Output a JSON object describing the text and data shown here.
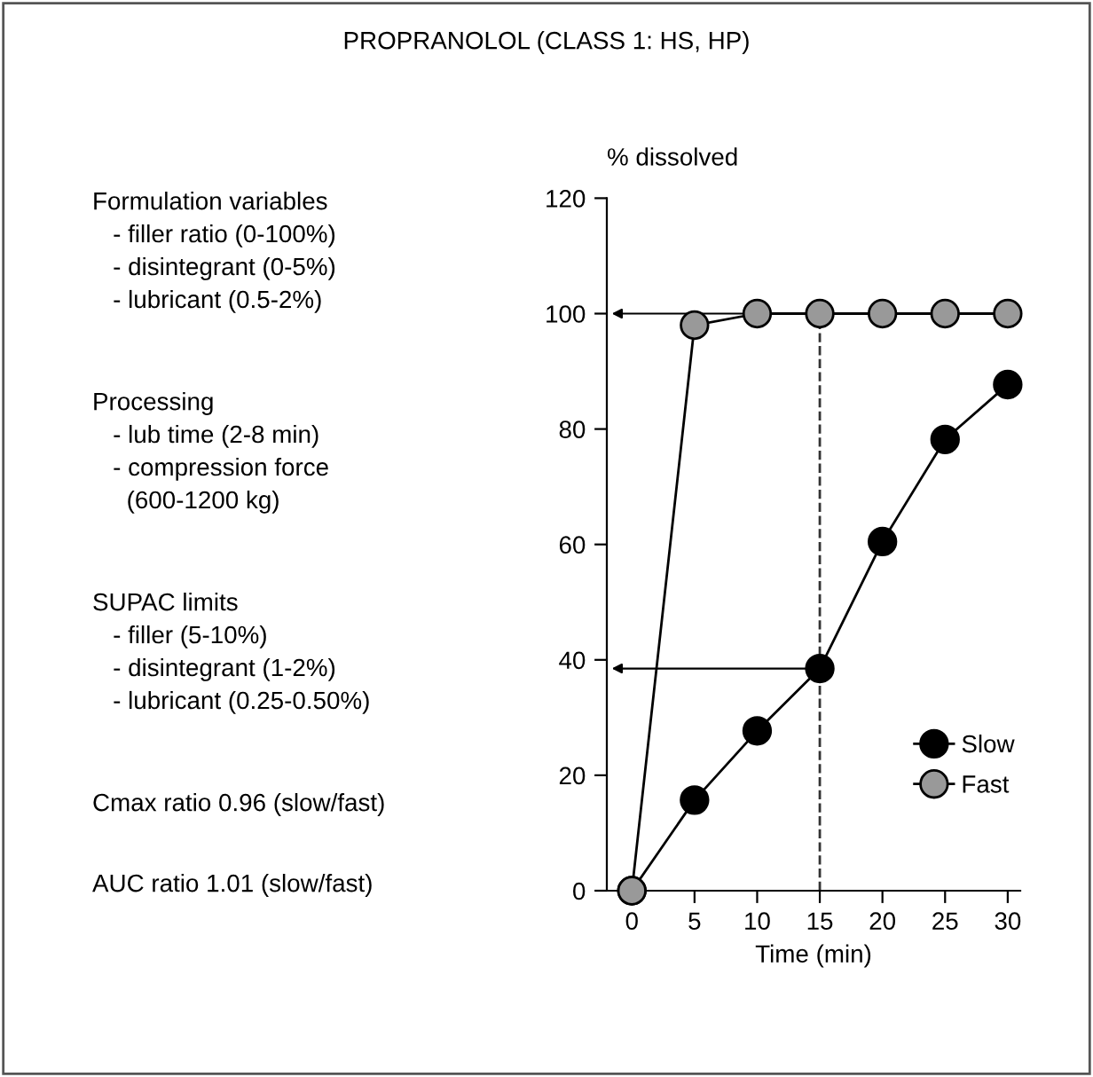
{
  "chart_data": {
    "type": "line",
    "title": "PROPRANOLOL (CLASS 1: HS, HP)",
    "xlabel": "Time (min)",
    "ylabel": "% dissolved",
    "x": [
      0,
      5,
      10,
      15,
      20,
      25,
      30
    ],
    "series": [
      {
        "name": "Slow",
        "color": "#000000",
        "values": [
          0,
          15.7,
          27.7,
          38.5,
          60.5,
          78.2,
          87.7
        ]
      },
      {
        "name": "Fast",
        "color": "#999999",
        "values": [
          0,
          98,
          100,
          100,
          100,
          100,
          100
        ]
      }
    ],
    "xlim": [
      -2,
      31
    ],
    "xticks": [
      0,
      5,
      10,
      15,
      20,
      25,
      30
    ],
    "ylim": [
      0,
      120
    ],
    "yticks": [
      0,
      20,
      40,
      60,
      80,
      100,
      120
    ],
    "ref_lines": [
      {
        "axis": "x",
        "value": 15,
        "label": null,
        "line_style": "dashed",
        "color": "#333333"
      }
    ],
    "marker": "circle",
    "grid": false,
    "legend": "bottom right",
    "annotations": [
      "Formulation variables\n   - filler ratio (0-100%)\n   - disintegrant (0-5%)\n   - lubricant (0.5-2%)",
      "Processing\n   - lub time (2-8 min)\n   - compression force\n     (600-1200 kg)",
      "SUPAC limits\n   - filler (5-10%)\n   - disintegrant (1-2%)\n   - lubricant (0.25-0.50%)",
      "Cmax ratio 0.96 (slow/fast)",
      "AUC ratio 1.01 (slow/fast)"
    ]
  }
}
